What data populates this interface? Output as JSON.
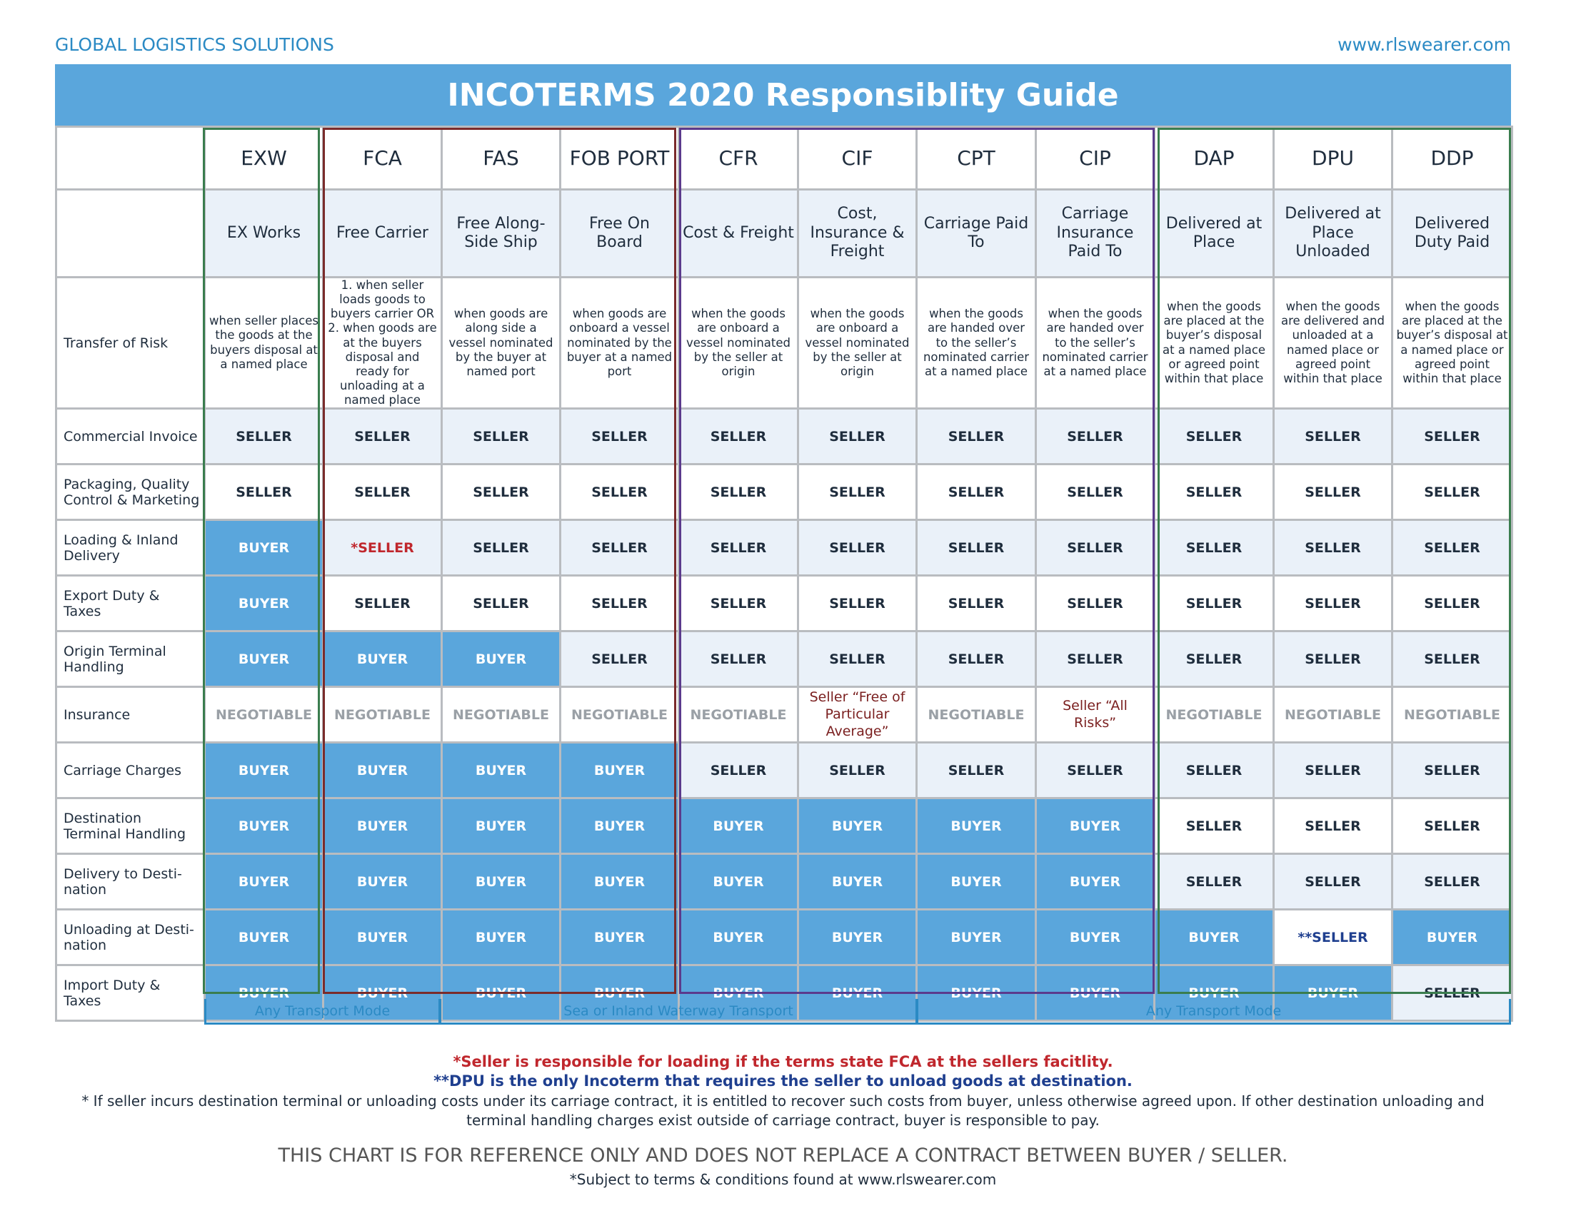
{
  "header": {
    "company": "GLOBAL LOGISTICS SOLUTIONS",
    "website": "www.rlswearer.com",
    "title": "INCOTERMS 2020 Responsiblity Guide"
  },
  "terms": [
    {
      "code": "EXW",
      "name": "EX Works",
      "risk": "when seller places the goods at the buyers disposal at a named place"
    },
    {
      "code": "FCA",
      "name": "Free Carrier",
      "risk": "1. when seller loads goods to buyers carrier OR 2. when goods are at the buyers disposal and ready for unloading at a named place"
    },
    {
      "code": "FAS",
      "name": "Free Along-Side Ship",
      "risk": "when goods are along side a vessel nominated by the buyer at named port"
    },
    {
      "code": "FOB PORT",
      "name": "Free On Board",
      "risk": "when goods are onboard a vessel nominated by the buyer at a named port"
    },
    {
      "code": "CFR",
      "name": "Cost & Freight",
      "risk": "when the goods are onboard a vessel nominated by the seller at origin"
    },
    {
      "code": "CIF",
      "name": "Cost, Insurance & Freight",
      "risk": "when the goods are onboard a vessel nominated by the seller at origin"
    },
    {
      "code": "CPT",
      "name": "Carriage Paid To",
      "risk": "when the goods are handed over to the seller’s nominated carrier at a named place"
    },
    {
      "code": "CIP",
      "name": "Carriage Insurance Paid To",
      "risk": "when the goods are handed over to the seller’s nominated carrier at a named place"
    },
    {
      "code": "DAP",
      "name": "Delivered at Place",
      "risk": "when the goods are placed at the buyer’s disposal at a named place or agreed point within that place"
    },
    {
      "code": "DPU",
      "name": "Delivered at Place Unloaded",
      "risk": "when the goods are delivered and unloaded at a named place or agreed point within that place"
    },
    {
      "code": "DDP",
      "name": "Delivered Duty Paid",
      "risk": "when the goods are placed at the buyer’s disposal at a named place or agreed point within that place"
    }
  ],
  "risk_label": "Transfer of Risk",
  "rows": [
    {
      "label": "Commercial Invoice",
      "values": [
        "SELLER",
        "SELLER",
        "SELLER",
        "SELLER",
        "SELLER",
        "SELLER",
        "SELLER",
        "SELLER",
        "SELLER",
        "SELLER",
        "SELLER"
      ]
    },
    {
      "label": "Packaging, Quality Control & Marketing",
      "values": [
        "SELLER",
        "SELLER",
        "SELLER",
        "SELLER",
        "SELLER",
        "SELLER",
        "SELLER",
        "SELLER",
        "SELLER",
        "SELLER",
        "SELLER"
      ]
    },
    {
      "label": "Loading & Inland Delivery",
      "values": [
        "BUYER",
        "*SELLER",
        "SELLER",
        "SELLER",
        "SELLER",
        "SELLER",
        "SELLER",
        "SELLER",
        "SELLER",
        "SELLER",
        "SELLER"
      ]
    },
    {
      "label": "Export Duty & Taxes",
      "values": [
        "BUYER",
        "SELLER",
        "SELLER",
        "SELLER",
        "SELLER",
        "SELLER",
        "SELLER",
        "SELLER",
        "SELLER",
        "SELLER",
        "SELLER"
      ]
    },
    {
      "label": "Origin Terminal Handling",
      "values": [
        "BUYER",
        "BUYER",
        "BUYER",
        "SELLER",
        "SELLER",
        "SELLER",
        "SELLER",
        "SELLER",
        "SELLER",
        "SELLER",
        "SELLER"
      ]
    },
    {
      "label": "Insurance",
      "values": [
        "NEGOTIABLE",
        "NEGOTIABLE",
        "NEGOTIABLE",
        "NEGOTIABLE",
        "NEGOTIABLE",
        "Seller “Free of Particular Average”",
        "NEGOTIABLE",
        "Seller “All Risks”",
        "NEGOTIABLE",
        "NEGOTIABLE",
        "NEGOTIABLE"
      ]
    },
    {
      "label": "Carriage Charges",
      "values": [
        "BUYER",
        "BUYER",
        "BUYER",
        "BUYER",
        "SELLER",
        "SELLER",
        "SELLER",
        "SELLER",
        "SELLER",
        "SELLER",
        "SELLER"
      ]
    },
    {
      "label": "Destination Terminal Handling",
      "values": [
        "BUYER",
        "BUYER",
        "BUYER",
        "BUYER",
        "BUYER",
        "BUYER",
        "BUYER",
        "BUYER",
        "SELLER",
        "SELLER",
        "SELLER"
      ]
    },
    {
      "label": "Delivery to Desti-nation",
      "values": [
        "BUYER",
        "BUYER",
        "BUYER",
        "BUYER",
        "BUYER",
        "BUYER",
        "BUYER",
        "BUYER",
        "SELLER",
        "SELLER",
        "SELLER"
      ]
    },
    {
      "label": "Unloading at Desti-nation",
      "values": [
        "BUYER",
        "BUYER",
        "BUYER",
        "BUYER",
        "BUYER",
        "BUYER",
        "BUYER",
        "BUYER",
        "BUYER",
        "**SELLER",
        "BUYER"
      ]
    },
    {
      "label": "Import Duty & Taxes",
      "values": [
        "BUYER",
        "BUYER",
        "BUYER",
        "BUYER",
        "BUYER",
        "BUYER",
        "BUYER",
        "BUYER",
        "BUYER",
        "BUYER",
        "SELLER"
      ]
    }
  ],
  "transport_modes": [
    "Any Transport Mode",
    "Sea or Inland Waterway Transport",
    "Any Transport Mode"
  ],
  "footer": {
    "note1": "*Seller is responsible for loading if the terms state FCA at the sellers facitlity.",
    "note2": "**DPU is the only Incoterm that requires the seller to unload goods at destination.",
    "note3": "* If seller incurs destination terminal or unloading costs under its carriage contract, it is entitled to recover such costs from buyer, unless otherwise agreed upon. If other destination unloading and terminal handling charges exist outside of carriage contract, buyer is responsible to pay.",
    "disclaimer": "THIS CHART IS FOR REFERENCE ONLY AND DOES NOT REPLACE A CONTRACT BETWEEN BUYER / SELLER.",
    "terms": "*Subject to terms & conditions found at www.rlswearer.com"
  },
  "colors": {
    "accent": "#5aa6dc",
    "brand": "#2b8ac4",
    "red": "#c0272d",
    "navy": "#1f3f8f",
    "pale": "#eaf1f9"
  }
}
